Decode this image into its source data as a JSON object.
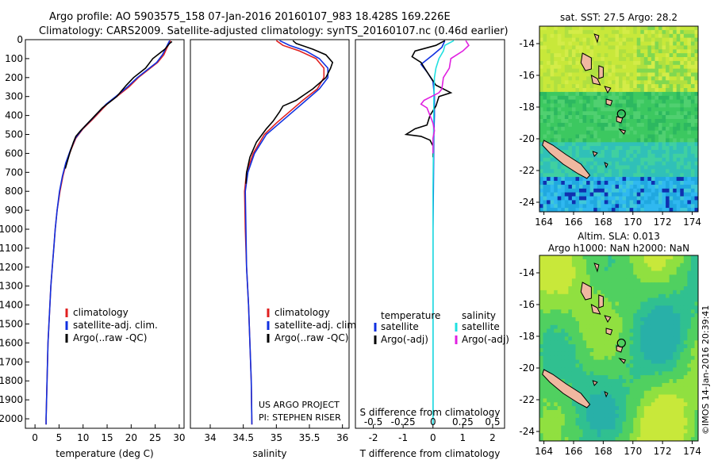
{
  "header": {
    "line1": "Argo profile: AO 5903575_158 07-Jan-2016 20160107_983 18.428S 169.226E",
    "line2": "Climatology: CARS2009. Satellite-adjusted climatology: synTS_20160107.nc (0.46d earlier)"
  },
  "credit": "©IMOS 14-Jan-2016 20:39:41",
  "project_note": [
    "US ARGO PROJECT",
    "PI: STEPHEN RISER"
  ],
  "colors": {
    "climatology": "#e02020",
    "satellite": "#1030e0",
    "argo": "#000000",
    "sat_salinity": "#20e0e0",
    "argo_salinity_adj": "#e020e0",
    "land": "#f0b8a0"
  },
  "chart_data": [
    {
      "type": "line",
      "id": "temperature",
      "xlabel": "temperature (deg C)",
      "ylabel": "",
      "xlim": [
        -2,
        31
      ],
      "ylim": [
        2050,
        0
      ],
      "xticks": [
        0,
        5,
        10,
        15,
        20,
        25,
        30
      ],
      "yticks": [
        0,
        100,
        200,
        300,
        400,
        500,
        600,
        700,
        800,
        900,
        1000,
        1100,
        1200,
        1300,
        1400,
        1500,
        1600,
        1700,
        1800,
        1900,
        2000
      ],
      "legend": [
        "climatology",
        "satellite-adj. clim.",
        "Argo(..raw -QC)"
      ],
      "series": [
        {
          "name": "climatology",
          "color": "#e02020",
          "points": [
            [
              28.2,
              5
            ],
            [
              27.5,
              40
            ],
            [
              26.8,
              80
            ],
            [
              25.5,
              120
            ],
            [
              23.5,
              160
            ],
            [
              21.5,
              200
            ],
            [
              19.5,
              250
            ],
            [
              17,
              300
            ],
            [
              15,
              340
            ],
            [
              13.5,
              380
            ],
            [
              12,
              420
            ],
            [
              10,
              470
            ],
            [
              8.5,
              520
            ],
            [
              7.5,
              580
            ],
            [
              6.5,
              650
            ],
            [
              5.8,
              720
            ],
            [
              5.2,
              800
            ],
            [
              4.6,
              900
            ],
            [
              4.2,
              1000
            ],
            [
              3.9,
              1100
            ],
            [
              3.6,
              1200
            ],
            [
              3.3,
              1300
            ],
            [
              3.1,
              1400
            ],
            [
              2.9,
              1500
            ],
            [
              2.7,
              1600
            ],
            [
              2.6,
              1700
            ],
            [
              2.5,
              1800
            ],
            [
              2.4,
              1900
            ],
            [
              2.3,
              2000
            ],
            [
              2.3,
              2030
            ]
          ]
        },
        {
          "name": "satellite",
          "color": "#1030e0",
          "points": [
            [
              28,
              5
            ],
            [
              27.3,
              40
            ],
            [
              26.5,
              80
            ],
            [
              25.3,
              120
            ],
            [
              23.3,
              160
            ],
            [
              21.3,
              200
            ],
            [
              19.2,
              250
            ],
            [
              16.8,
              300
            ],
            [
              14.8,
              340
            ],
            [
              13.3,
              380
            ],
            [
              11.8,
              420
            ],
            [
              9.9,
              470
            ],
            [
              8.4,
              520
            ],
            [
              7.4,
              580
            ],
            [
              6.4,
              650
            ],
            [
              5.7,
              720
            ],
            [
              5.1,
              800
            ],
            [
              4.6,
              900
            ],
            [
              4.2,
              1000
            ],
            [
              3.9,
              1100
            ],
            [
              3.6,
              1200
            ],
            [
              3.3,
              1300
            ],
            [
              3.1,
              1400
            ],
            [
              2.9,
              1500
            ],
            [
              2.7,
              1600
            ],
            [
              2.6,
              1700
            ],
            [
              2.5,
              1800
            ],
            [
              2.4,
              1900
            ],
            [
              2.3,
              2000
            ],
            [
              2.3,
              2030
            ]
          ]
        },
        {
          "name": "argo",
          "color": "#000000",
          "points": [
            [
              28.5,
              10
            ],
            [
              28,
              20
            ],
            [
              27,
              50
            ],
            [
              25.5,
              80
            ],
            [
              24.5,
              100
            ],
            [
              23,
              150
            ],
            [
              20.5,
              200
            ],
            [
              19,
              240
            ],
            [
              17,
              300
            ],
            [
              15,
              340
            ],
            [
              14,
              360
            ],
            [
              12.5,
              400
            ],
            [
              11,
              440
            ],
            [
              9.5,
              480
            ],
            [
              8.5,
              510
            ],
            [
              8,
              540
            ],
            [
              7.2,
              600
            ],
            [
              6.3,
              680
            ]
          ]
        }
      ]
    },
    {
      "type": "line",
      "id": "salinity",
      "xlabel": "salinity",
      "ylabel": "",
      "xlim": [
        33.7,
        36.1
      ],
      "ylim": [
        2050,
        0
      ],
      "xticks": [
        34,
        34.5,
        35,
        35.5,
        36
      ],
      "yticks": [],
      "legend": [
        "climatology",
        "satellite-adj. clim.",
        "Argo(..raw -QC)"
      ],
      "series": [
        {
          "name": "climatology",
          "color": "#e02020",
          "points": [
            [
              35,
              5
            ],
            [
              35.1,
              30
            ],
            [
              35.35,
              60
            ],
            [
              35.6,
              100
            ],
            [
              35.72,
              150
            ],
            [
              35.72,
              200
            ],
            [
              35.62,
              260
            ],
            [
              35.4,
              320
            ],
            [
              35.2,
              380
            ],
            [
              35.0,
              440
            ],
            [
              34.82,
              500
            ],
            [
              34.65,
              600
            ],
            [
              34.55,
              700
            ],
            [
              34.52,
              800
            ],
            [
              34.53,
              1000
            ],
            [
              34.55,
              1200
            ],
            [
              34.58,
              1400
            ],
            [
              34.6,
              1600
            ],
            [
              34.62,
              1800
            ],
            [
              34.63,
              2030
            ]
          ]
        },
        {
          "name": "satellite",
          "color": "#1030e0",
          "points": [
            [
              35.05,
              5
            ],
            [
              35.2,
              30
            ],
            [
              35.45,
              60
            ],
            [
              35.65,
              100
            ],
            [
              35.78,
              150
            ],
            [
              35.78,
              200
            ],
            [
              35.65,
              260
            ],
            [
              35.45,
              320
            ],
            [
              35.25,
              380
            ],
            [
              35.05,
              440
            ],
            [
              34.85,
              500
            ],
            [
              34.67,
              600
            ],
            [
              34.57,
              700
            ],
            [
              34.53,
              800
            ],
            [
              34.54,
              1000
            ],
            [
              34.55,
              1200
            ],
            [
              34.58,
              1400
            ],
            [
              34.6,
              1600
            ],
            [
              34.62,
              1800
            ],
            [
              34.63,
              2030
            ]
          ]
        },
        {
          "name": "argo",
          "color": "#000000",
          "points": [
            [
              35.25,
              5
            ],
            [
              35.3,
              20
            ],
            [
              35.55,
              50
            ],
            [
              35.75,
              80
            ],
            [
              35.85,
              120
            ],
            [
              35.82,
              150
            ],
            [
              35.75,
              200
            ],
            [
              35.55,
              260
            ],
            [
              35.3,
              320
            ],
            [
              35.1,
              350
            ],
            [
              35.05,
              380
            ],
            [
              34.95,
              430
            ],
            [
              34.85,
              470
            ],
            [
              34.7,
              540
            ],
            [
              34.6,
              620
            ],
            [
              34.55,
              700
            ],
            [
              34.54,
              760
            ]
          ]
        }
      ]
    },
    {
      "type": "line",
      "id": "difference",
      "xlabel": "T difference from climatology",
      "xlabel2": "S difference from climatology",
      "xlim": [
        -2.6,
        2.4
      ],
      "ylim": [
        2050,
        0
      ],
      "xticks": [
        -2,
        -1,
        0,
        1,
        2
      ],
      "xticks_top_labels": [
        "-0.5",
        "-0.25",
        "0",
        "0.25",
        "0.5"
      ],
      "legend": {
        "temperature_title": "temperature",
        "salinity_title": "salinity",
        "items": [
          "satellite",
          "Argo(-adj)",
          "satellite",
          "Argo(-adj)"
        ]
      },
      "series": [
        {
          "name": "temperature satellite",
          "color": "#1030e0",
          "points": [
            [
              0.4,
              5
            ],
            [
              0.3,
              40
            ],
            [
              0,
              80
            ],
            [
              -0.4,
              130
            ],
            [
              -0.2,
              170
            ],
            [
              0,
              220
            ],
            [
              0.05,
              300
            ],
            [
              0.05,
              400
            ],
            [
              0.03,
              500
            ],
            [
              0.02,
              700
            ],
            [
              0,
              1000
            ],
            [
              0,
              1500
            ],
            [
              0,
              2030
            ]
          ]
        },
        {
          "name": "temperature Argo(-adj)",
          "color": "#000000",
          "points": [
            [
              0.4,
              5
            ],
            [
              0.1,
              30
            ],
            [
              -0.6,
              60
            ],
            [
              -0.7,
              90
            ],
            [
              -0.4,
              120
            ],
            [
              -0.2,
              170
            ],
            [
              0.1,
              240
            ],
            [
              0.6,
              280
            ],
            [
              0.2,
              300
            ],
            [
              0.1,
              350
            ],
            [
              -0.1,
              400
            ],
            [
              -0.2,
              450
            ],
            [
              -0.6,
              470
            ],
            [
              -0.9,
              500
            ],
            [
              -0.4,
              510
            ],
            [
              -0.1,
              530
            ],
            [
              0,
              560
            ],
            [
              0,
              620
            ]
          ]
        },
        {
          "name": "salinity satellite",
          "color": "#20e0e0",
          "points": [
            [
              0.7,
              5
            ],
            [
              0.4,
              30
            ],
            [
              0.35,
              60
            ],
            [
              0.2,
              100
            ],
            [
              0.1,
              150
            ],
            [
              0.05,
              200
            ],
            [
              0.03,
              300
            ],
            [
              0.02,
              500
            ],
            [
              0,
              800
            ],
            [
              0,
              1200
            ],
            [
              0,
              1600
            ],
            [
              0,
              2030
            ]
          ]
        },
        {
          "name": "salinity Argo(-adj)",
          "color": "#e020e0",
          "points": [
            [
              1.1,
              5
            ],
            [
              1.2,
              30
            ],
            [
              1.0,
              60
            ],
            [
              0.6,
              100
            ],
            [
              0.55,
              150
            ],
            [
              0.35,
              200
            ],
            [
              0.3,
              260
            ],
            [
              0.2,
              280
            ],
            [
              -0.3,
              320
            ],
            [
              -0.4,
              340
            ],
            [
              -0.2,
              360
            ],
            [
              -0.1,
              400
            ],
            [
              0,
              440
            ],
            [
              0.05,
              480
            ],
            [
              0,
              520
            ],
            [
              0,
              600
            ]
          ]
        }
      ]
    },
    {
      "type": "heatmap",
      "id": "sst_map",
      "title": "sat. SST: 27.5 Argo: 28.2",
      "xlim": [
        163.7,
        174.4
      ],
      "ylim": [
        -24.6,
        -12.9
      ],
      "xticks": [
        164,
        166,
        168,
        170,
        172,
        174
      ],
      "yticks": [
        -14,
        -16,
        -18,
        -20,
        -22,
        -24
      ],
      "marker": [
        169.226,
        -18.428
      ]
    },
    {
      "type": "heatmap",
      "id": "sla_map",
      "title": "Altim. SLA: 0.013",
      "subtitle": "Argo h1000: NaN h2000: NaN",
      "xlim": [
        163.7,
        174.4
      ],
      "ylim": [
        -24.6,
        -12.9
      ],
      "xticks": [
        164,
        166,
        168,
        170,
        172,
        174
      ],
      "yticks": [
        -14,
        -16,
        -18,
        -20,
        -22,
        -24
      ],
      "marker": [
        169.226,
        -18.428
      ]
    }
  ]
}
